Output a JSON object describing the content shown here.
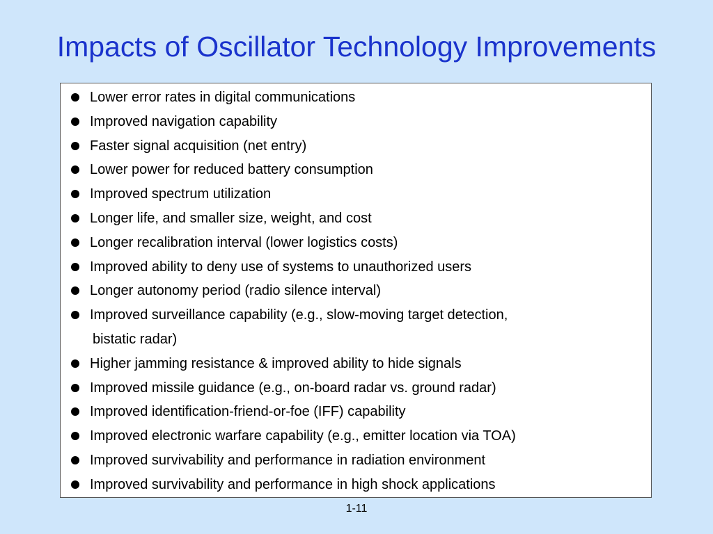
{
  "slide": {
    "title": "Impacts of Oscillator Technology Improvements",
    "page_number": "1-11",
    "colors": {
      "background": "#cfe6fb",
      "title": "#1a33cc",
      "box_background": "#ffffff",
      "text": "#000000"
    }
  },
  "bullets": [
    {
      "text": "Lower error rates in digital communications"
    },
    {
      "text": "Improved navigation capability"
    },
    {
      "text": "Faster signal acquisition (net entry)"
    },
    {
      "text": "Lower power for reduced battery consumption"
    },
    {
      "text": "Improved spectrum utilization"
    },
    {
      "text": "Longer life, and smaller size, weight, and cost"
    },
    {
      "text": "Longer recalibration interval (lower logistics costs)"
    },
    {
      "text": "Improved ability to deny use of systems to unauthorized users"
    },
    {
      "text": "Longer autonomy period (radio silence interval)"
    },
    {
      "text": "Improved surveillance capability (e.g., slow-moving target detection,",
      "continuation": "bistatic radar)"
    },
    {
      "text": "Higher jamming resistance & improved ability to hide signals"
    },
    {
      "text": "Improved missile guidance (e.g., on-board radar vs. ground radar)"
    },
    {
      "text": "Improved identification-friend-or-foe (IFF) capability"
    },
    {
      "text": "Improved electronic warfare capability (e.g., emitter location via TOA)"
    },
    {
      "text": "Improved survivability and performance in radiation environment"
    },
    {
      "text": "Improved survivability and performance in high shock applications"
    }
  ]
}
